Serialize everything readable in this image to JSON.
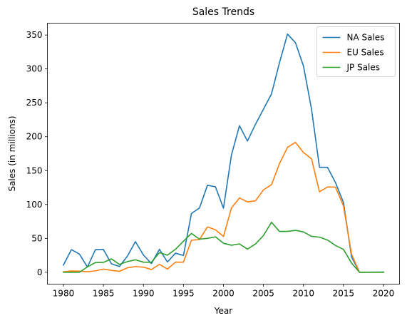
{
  "chart_data": {
    "type": "line",
    "title": "Sales Trends",
    "xlabel": "Year",
    "ylabel": "Sales (in millions)",
    "xlim": [
      1978,
      2022
    ],
    "ylim": [
      -17.5,
      367.5
    ],
    "xticks": [
      1980,
      1985,
      1990,
      1995,
      2000,
      2005,
      2010,
      2015,
      2020
    ],
    "yticks": [
      0,
      50,
      100,
      150,
      200,
      250,
      300,
      350
    ],
    "grid": false,
    "legend_position": "top-right",
    "x": [
      1980,
      1981,
      1982,
      1983,
      1984,
      1985,
      1986,
      1987,
      1988,
      1989,
      1990,
      1991,
      1992,
      1993,
      1994,
      1995,
      1996,
      1997,
      1998,
      1999,
      2000,
      2001,
      2002,
      2003,
      2004,
      2005,
      2006,
      2007,
      2008,
      2009,
      2010,
      2011,
      2012,
      2013,
      2014,
      2015,
      2016,
      2017,
      2020
    ],
    "series": [
      {
        "name": "NA Sales",
        "color": "#1f77b4",
        "values": [
          10.6,
          33.4,
          26.9,
          7.8,
          33.3,
          33.7,
          12.5,
          8.5,
          23.9,
          45.2,
          25.5,
          12.8,
          33.9,
          15.1,
          28.2,
          24.8,
          86.8,
          94.8,
          128.4,
          126.1,
          94.5,
          173.1,
          216.2,
          193.6,
          218.3,
          240.6,
          263.1,
          309.1,
          351.4,
          338.6,
          304.2,
          241.0,
          154.8,
          154.8,
          132.3,
          102.8,
          22.7,
          0.0,
          0.3
        ]
      },
      {
        "name": "EU Sales",
        "color": "#ff7f0e",
        "values": [
          0.7,
          1.9,
          1.7,
          0.8,
          2.1,
          4.7,
          2.8,
          1.4,
          6.6,
          8.4,
          7.6,
          4.0,
          11.7,
          4.7,
          14.9,
          14.9,
          47.3,
          48.3,
          66.9,
          62.7,
          52.8,
          94.9,
          109.7,
          103.8,
          105.4,
          121.6,
          129.2,
          160.2,
          184.4,
          191.6,
          176.7,
          167.4,
          118.8,
          125.8,
          125.7,
          97.7,
          26.8,
          0.0,
          0.0
        ]
      },
      {
        "name": "JP Sales",
        "color": "#2ca02c",
        "values": [
          0.0,
          0.0,
          0.0,
          8.1,
          14.3,
          14.6,
          19.8,
          11.6,
          15.8,
          18.4,
          14.9,
          14.8,
          28.9,
          25.3,
          33.9,
          45.8,
          57.4,
          48.9,
          50.0,
          52.3,
          42.8,
          39.9,
          41.8,
          34.2,
          41.7,
          54.3,
          73.7,
          60.3,
          60.3,
          61.9,
          59.5,
          53.0,
          51.8,
          47.6,
          39.5,
          33.7,
          13.7,
          0.0,
          0.0
        ]
      }
    ]
  }
}
